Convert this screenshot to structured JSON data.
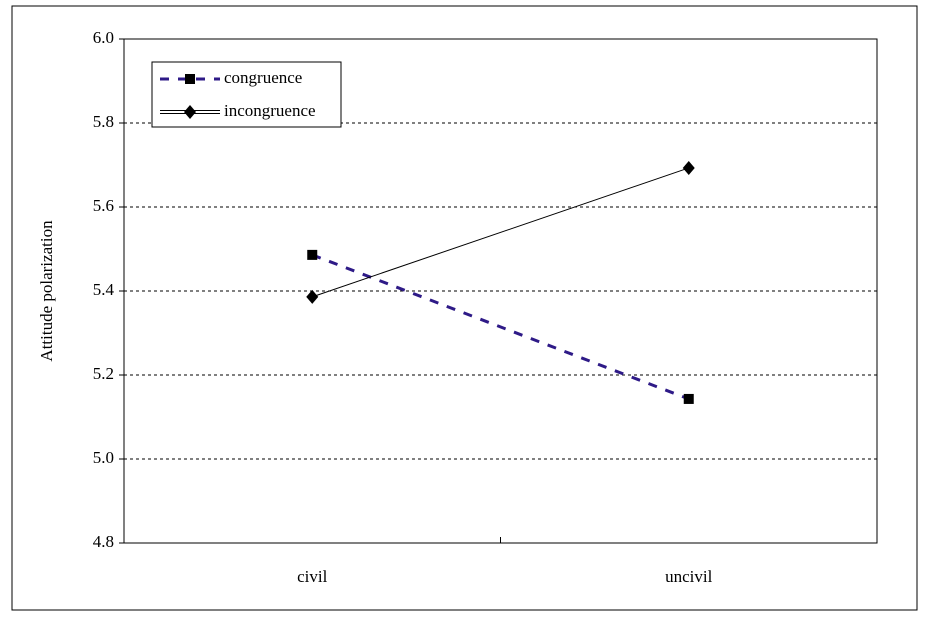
{
  "chart_data": {
    "type": "line",
    "y_label": "Attitude polarization",
    "categories": [
      "civil",
      "uncivil"
    ],
    "series": [
      {
        "name": "congruence",
        "color": "#2e1a87",
        "line_style": "dashed",
        "marker": "square",
        "values": [
          5.486,
          5.143
        ]
      },
      {
        "name": "incongruence",
        "color": "#000000",
        "line_style": "solid",
        "marker": "diamond",
        "values": [
          5.386,
          5.693
        ]
      }
    ],
    "ylim": [
      4.8,
      6.0
    ],
    "yticks": [
      4.8,
      {
        "value": 5.0,
        "label": "5.0"
      },
      5.2,
      5.4,
      5.6,
      5.8,
      {
        "value": 6.0,
        "label": "6.0"
      }
    ],
    "grid": true,
    "legend": "top-left"
  }
}
